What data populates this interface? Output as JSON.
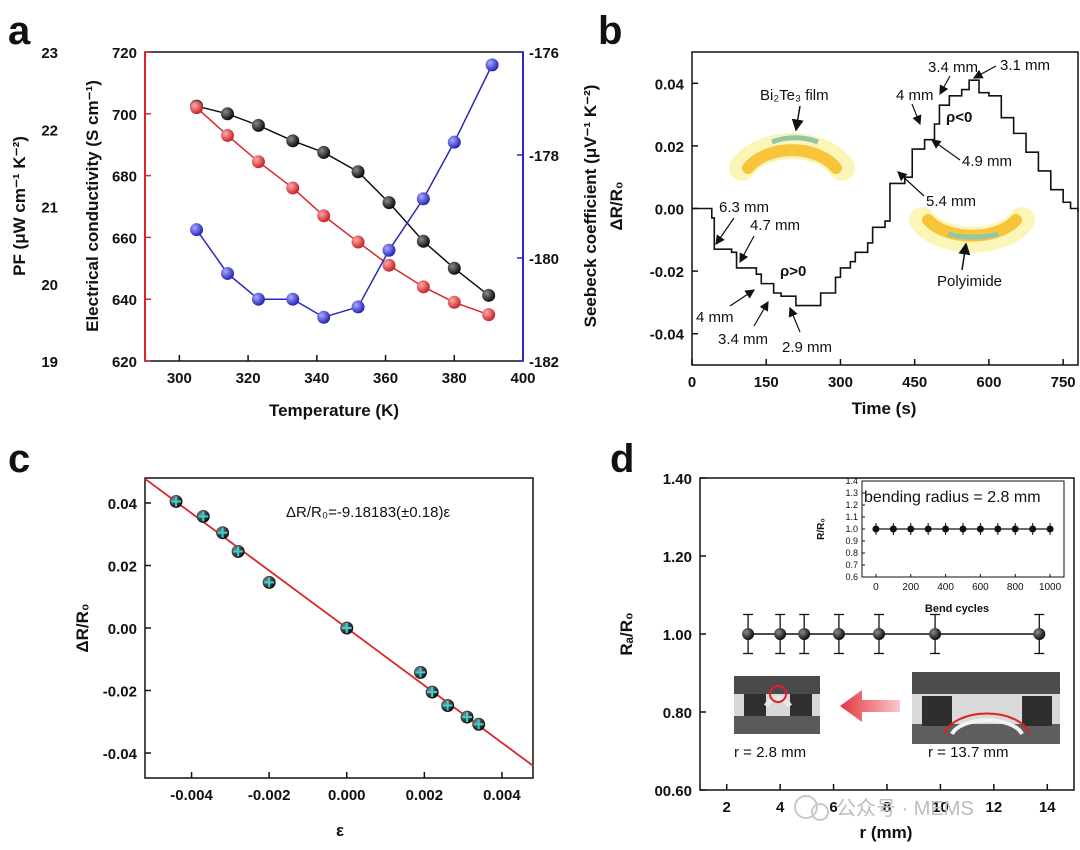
{
  "panel_letters": {
    "a": "a",
    "b": "b",
    "c": "c",
    "d": "d"
  },
  "watermark": "公众号 · MEMS",
  "chart_data": [
    {
      "panel": "a",
      "type": "line",
      "xlabel": "Temperature (K)",
      "xlim": [
        290,
        400
      ],
      "xticks": [
        "300",
        "320",
        "340",
        "360",
        "380",
        "400"
      ],
      "yaxes": {
        "pf": {
          "label": "PF (μW cm⁻¹ K⁻²)",
          "lim": [
            19,
            23
          ],
          "ticks": [
            "19",
            "20",
            "21",
            "22",
            "23"
          ],
          "color": "#111111"
        },
        "ec": {
          "label": "Electrical conductivity (S cm⁻¹)",
          "lim": [
            620,
            720
          ],
          "ticks": [
            "620",
            "640",
            "660",
            "680",
            "700",
            "720"
          ],
          "color": "#d9262a"
        },
        "seebeck": {
          "label": "Seebeck coefficient (μV⁻¹ K⁻²)",
          "lim": [
            -182,
            -176
          ],
          "ticks": [
            "-182",
            "-180",
            "-178",
            "-176"
          ],
          "color": "#2929c0"
        }
      },
      "series": [
        {
          "axis": "pf",
          "color": "#111111",
          "x": [
            305,
            314,
            323,
            333,
            342,
            352,
            361,
            371,
            380,
            390
          ],
          "y": [
            22.3,
            22.2,
            22.05,
            21.85,
            21.7,
            21.45,
            21.05,
            20.55,
            20.2,
            19.85
          ]
        },
        {
          "axis": "ec",
          "color": "#d9262a",
          "x": [
            305,
            314,
            323,
            333,
            342,
            352,
            361,
            371,
            380,
            390
          ],
          "y": [
            702,
            693,
            684.5,
            676,
            667,
            658.5,
            651,
            644,
            639,
            635
          ]
        },
        {
          "axis": "seebeck",
          "color": "#2929c0",
          "x": [
            305,
            314,
            323,
            333,
            342,
            352,
            361,
            371,
            380,
            391
          ],
          "y": [
            -179.45,
            -180.3,
            -180.8,
            -180.8,
            -181.15,
            -180.95,
            -179.85,
            -178.85,
            -177.75,
            -176.25
          ]
        }
      ]
    },
    {
      "panel": "b",
      "type": "line",
      "xlabel": "Time (s)",
      "ylabel": "ΔR/R₀",
      "xlim": [
        0,
        780
      ],
      "ylim": [
        -0.05,
        0.05
      ],
      "xticks": [
        "0",
        "150",
        "300",
        "450",
        "600",
        "750"
      ],
      "yticks": [
        "-0.04",
        "-0.02",
        "0.00",
        "0.02",
        "0.04"
      ],
      "series": [
        {
          "color": "#111111",
          "x": [
            0,
            30,
            40,
            45,
            80,
            90,
            130,
            140,
            165,
            180,
            210,
            260,
            290,
            300,
            320,
            330,
            355,
            365,
            390,
            400,
            430,
            445,
            470,
            490,
            500,
            520,
            545,
            560,
            580,
            600,
            625,
            650,
            675,
            700,
            725,
            750,
            765,
            780
          ],
          "y": [
            0.0,
            0.0,
            -0.003,
            -0.013,
            -0.014,
            -0.019,
            -0.021,
            -0.024,
            -0.027,
            -0.028,
            -0.031,
            -0.027,
            -0.022,
            -0.019,
            -0.017,
            -0.014,
            -0.011,
            -0.006,
            -0.004,
            0.008,
            0.01,
            0.019,
            0.022,
            0.027,
            0.033,
            0.036,
            0.038,
            0.041,
            0.037,
            0.036,
            0.029,
            0.024,
            0.018,
            0.012,
            0.006,
            0.002,
            0.0,
            -0.001
          ]
        }
      ],
      "annotations": [
        {
          "text": "6.3 mm"
        },
        {
          "text": "4.7 mm"
        },
        {
          "text": "4 mm"
        },
        {
          "text": "3.4 mm"
        },
        {
          "text": "2.9 mm"
        },
        {
          "text": "ρ>0"
        },
        {
          "text": "4 mm"
        },
        {
          "text": "3.4 mm"
        },
        {
          "text": "3.1 mm"
        },
        {
          "text": "ρ<0"
        },
        {
          "text": "4.9 mm"
        },
        {
          "text": "5.4 mm"
        }
      ],
      "inset_labels": {
        "film": "Bi₂Te₃ film",
        "substrate": "Polyimide"
      }
    },
    {
      "panel": "c",
      "type": "scatter",
      "xlabel": "ε",
      "ylabel": "ΔR/R₀",
      "xlim": [
        -0.0052,
        0.0048
      ],
      "ylim": [
        -0.048,
        0.048
      ],
      "xticks": [
        "-0.004",
        "-0.002",
        "0.000",
        "0.002",
        "0.004"
      ],
      "yticks": [
        "-0.04",
        "-0.02",
        "0.00",
        "0.02",
        "0.04"
      ],
      "fit": {
        "slope": -9.18183,
        "label": "ΔR/R₀=-9.18183(±0.18)ε",
        "color": "#d9262a"
      },
      "points": {
        "x": [
          -0.0044,
          -0.0037,
          -0.0032,
          -0.0028,
          -0.002,
          0.0,
          0.0019,
          0.0022,
          0.0026,
          0.0031,
          0.0034
        ],
        "y": [
          0.0405,
          0.0357,
          0.0305,
          0.0245,
          0.0146,
          0.0,
          -0.0142,
          -0.0205,
          -0.0248,
          -0.0285,
          -0.0308
        ]
      }
    },
    {
      "panel": "d",
      "type": "line",
      "xlabel": "r (mm)",
      "ylabel": "Rₐ/R₀",
      "xlim": [
        1,
        15
      ],
      "ylim": [
        0.6,
        1.4
      ],
      "xticks": [
        "2",
        "4",
        "6",
        "8",
        "10",
        "12",
        "14"
      ],
      "yticks": [
        "00.60",
        "0.80",
        "1.00",
        "1.20",
        "1.40"
      ],
      "series": [
        {
          "color": "#111111",
          "x": [
            2.8,
            4,
            4.9,
            6.2,
            7.7,
            9.8,
            13.7
          ],
          "y": [
            1.0,
            1.0,
            1.0,
            1.0,
            1.0,
            1.0,
            1.0
          ],
          "err": 0.05
        }
      ],
      "photo_labels": [
        "r = 2.8 mm",
        "r = 13.7 mm"
      ],
      "inset": {
        "xlabel": "Bend cycles",
        "ylabel": "R/R₀",
        "title": "bending radius = 2.8 mm",
        "xlim": [
          -80,
          1080
        ],
        "ylim": [
          0.6,
          1.4
        ],
        "xticks": [
          "0",
          "200",
          "400",
          "600",
          "800",
          "1000"
        ],
        "yticks": [
          "0.6",
          "0.7",
          "0.8",
          "0.9",
          "1.0",
          "1.1",
          "1.2",
          "1.3",
          "1.4"
        ],
        "x": [
          0,
          100,
          200,
          300,
          400,
          500,
          600,
          700,
          800,
          900,
          1000
        ],
        "y": [
          1.0,
          1.0,
          1.0,
          1.0,
          1.0,
          1.0,
          1.0,
          1.0,
          1.0,
          1.0,
          1.0
        ]
      }
    }
  ]
}
